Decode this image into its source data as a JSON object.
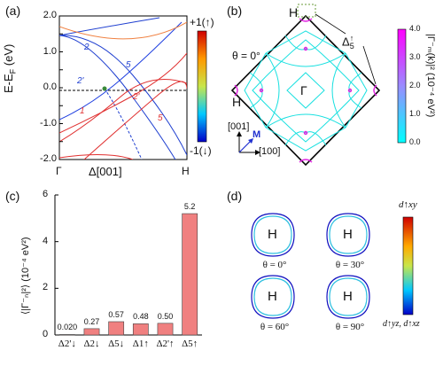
{
  "panels": {
    "a": {
      "label": "(a)"
    },
    "b": {
      "label": "(b)"
    },
    "c": {
      "label": "(c)"
    },
    "d": {
      "label": "(d)"
    }
  },
  "panel_a": {
    "ylabel": "E-E",
    "ylabel_sub": "F",
    "ylabel_unit": "(eV)",
    "xlabel": "Δ[001]",
    "x_left": "Γ",
    "x_right": "H",
    "yticks": [
      "2.0",
      "1.5",
      "1.0",
      "0.5",
      "0.0",
      "-0.5",
      "-1.0",
      "-1.5",
      "-2.0"
    ],
    "band_labels": [
      "2",
      "5",
      "2'",
      "1",
      "2'",
      "5"
    ],
    "colorbar_top": "+1(↑)",
    "colorbar_bottom": "-1(↓)"
  },
  "panel_b": {
    "gamma": "Γ",
    "h_top": "H",
    "h_left": "H",
    "theta": "θ = 0°",
    "delta": "Δ",
    "delta_sub": "5",
    "delta_sup": "↑",
    "dir_001": "[001]",
    "dir_100": "[100]",
    "dir_m": "M",
    "cbar_label": "|Γ⁻ₘ(k)|² (10⁻⁴ eV²)",
    "cbar_ticks": [
      "4.0",
      "3.0",
      "2.0",
      "1.0",
      "0.0"
    ]
  },
  "panel_c": {
    "ylabel": "⟨|Γ⁻ₙ|²⟩ (10⁻⁴ eV²)",
    "yticks": [
      "0",
      "2",
      "4",
      "6"
    ]
  },
  "chart_data": {
    "type": "bar",
    "categories": [
      "Δ2'↓",
      "Δ2↓",
      "Δ5↓",
      "Δ1↑",
      "Δ2'↑",
      "Δ5↑"
    ],
    "values": [
      0.02,
      0.27,
      0.57,
      0.48,
      0.5,
      5.2
    ],
    "value_labels": [
      "0.020",
      "0.27",
      "0.57",
      "0.48",
      "0.50",
      "5.2"
    ],
    "ylim": [
      0,
      6
    ],
    "ylabel": "⟨|Γ⁻ₙ|²⟩ (10⁻⁴ eV²)",
    "color": "#f08080"
  },
  "panel_d": {
    "h": "H",
    "thetas": [
      "θ = 0°",
      "θ = 30°",
      "θ = 60°",
      "θ = 90°"
    ],
    "cbar_top": "d↑xy",
    "cbar_bottom": "d↑yz, d↑xz"
  }
}
